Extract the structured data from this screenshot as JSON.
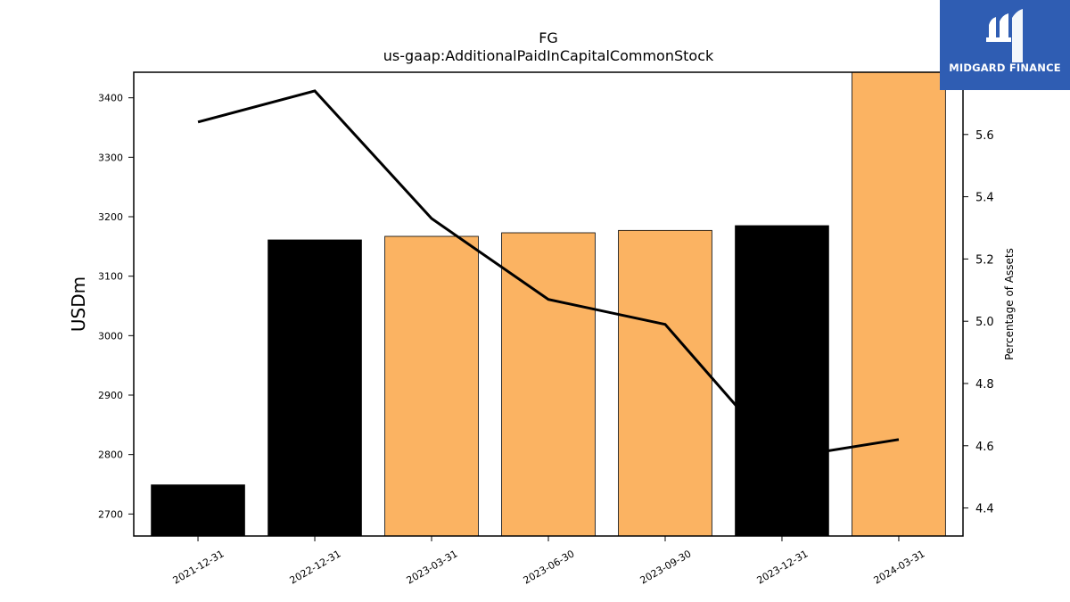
{
  "chart_data": {
    "type": "bar",
    "title": "FG",
    "subtitle": "us-gaap:AdditionalPaidInCapitalCommonStock",
    "ylabel": "USDm",
    "y2label": "Percentage of Assets",
    "categories": [
      "2021-12-31",
      "2022-12-31",
      "2023-03-31",
      "2023-06-30",
      "2023-09-30",
      "2023-12-31",
      "2024-03-31"
    ],
    "bar_values": [
      2749,
      3161,
      3167,
      3173,
      3177,
      3185,
      3450
    ],
    "bar_colors": [
      "#000000",
      "#000000",
      "#fbb362",
      "#fbb362",
      "#fbb362",
      "#000000",
      "#fbb362"
    ],
    "line_values": [
      5.64,
      5.74,
      5.33,
      5.07,
      4.99,
      4.56,
      4.62
    ],
    "line_color": "#000000",
    "ylim": [
      2663,
      3443
    ],
    "y2lim": [
      4.31,
      5.8
    ],
    "yticks": [
      "2700",
      "2800",
      "2900",
      "3000",
      "3100",
      "3200",
      "3300",
      "3400"
    ],
    "y2ticks": [
      "4.4",
      "4.6",
      "4.8",
      "5.0",
      "5.2",
      "5.4",
      "5.6"
    ],
    "grid": false,
    "legend": "none"
  },
  "brand": {
    "name": "MIDGARD FINANCE",
    "color": "#2f5db3"
  }
}
